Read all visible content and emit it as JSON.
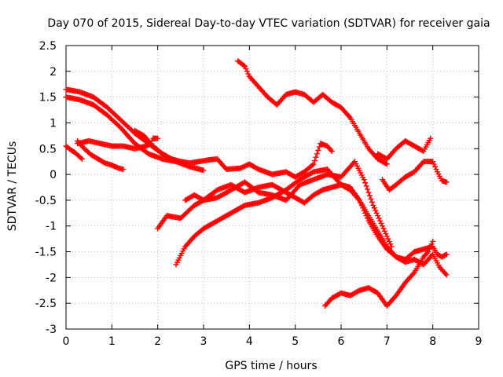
{
  "chart_data": {
    "type": "scatter",
    "title": "Day 070 of 2015, Sidereal Day-to-day VTEC variation (SDTVAR) for receiver gaia",
    "xlabel": "GPS time / hours",
    "ylabel": "SDTVAR / TECUs",
    "xlim": [
      0,
      9
    ],
    "ylim": [
      -3,
      2.5
    ],
    "xticks": [
      0,
      1,
      2,
      3,
      4,
      5,
      6,
      7,
      8,
      9
    ],
    "yticks": [
      -3,
      -2.5,
      -2,
      -1.5,
      -1,
      -0.5,
      0,
      0.5,
      1,
      1.5,
      2,
      2.5
    ],
    "grid": true,
    "marker": "+",
    "color": "#ff0000",
    "series": [
      {
        "x": [
          0.0,
          0.3,
          0.6,
          0.9,
          1.2,
          1.5,
          1.8,
          2.1,
          2.4,
          2.7,
          3.0
        ],
        "y": [
          1.65,
          1.6,
          1.5,
          1.3,
          1.05,
          0.8,
          0.6,
          0.4,
          0.25,
          0.15,
          0.08
        ]
      },
      {
        "x": [
          0.0,
          0.3,
          0.6,
          0.9,
          1.2,
          1.5,
          1.8,
          2.1,
          2.4
        ],
        "y": [
          1.5,
          1.45,
          1.35,
          1.15,
          0.9,
          0.6,
          0.4,
          0.3,
          0.25
        ]
      },
      {
        "x": [
          0.0,
          0.1,
          0.2,
          0.35
        ],
        "y": [
          0.55,
          0.48,
          0.42,
          0.3
        ]
      },
      {
        "x": [
          0.25,
          0.4,
          0.55,
          0.7,
          0.85,
          1.0,
          1.15,
          1.25
        ],
        "y": [
          0.65,
          0.5,
          0.38,
          0.3,
          0.22,
          0.18,
          0.12,
          0.1
        ]
      },
      {
        "x": [
          0.25,
          0.5,
          0.75,
          1.0,
          1.25,
          1.5,
          1.75,
          1.85,
          1.9,
          2.0
        ],
        "y": [
          0.6,
          0.65,
          0.6,
          0.55,
          0.55,
          0.5,
          0.55,
          0.6,
          0.7,
          0.7
        ]
      },
      {
        "x": [
          1.5,
          1.7,
          1.9,
          2.1,
          2.3,
          2.5,
          2.7,
          2.9,
          3.1,
          3.3,
          3.5,
          3.8,
          4.0,
          4.2,
          4.5,
          4.8,
          5.0,
          5.2,
          5.4,
          5.55,
          5.7,
          5.8
        ],
        "y": [
          0.85,
          0.75,
          0.55,
          0.4,
          0.3,
          0.25,
          0.22,
          0.25,
          0.28,
          0.3,
          0.1,
          0.12,
          0.2,
          0.1,
          0.0,
          0.05,
          -0.05,
          0.05,
          0.2,
          0.6,
          0.55,
          0.45
        ]
      },
      {
        "x": [
          3.75,
          3.9,
          4.0,
          4.2,
          4.4,
          4.6,
          4.8,
          5.0,
          5.2,
          5.4,
          5.6,
          5.8,
          6.0,
          6.2,
          6.4,
          6.6,
          6.8,
          7.0
        ],
        "y": [
          2.2,
          2.1,
          1.9,
          1.7,
          1.5,
          1.35,
          1.55,
          1.6,
          1.55,
          1.4,
          1.55,
          1.4,
          1.3,
          1.1,
          0.8,
          0.5,
          0.3,
          0.2
        ]
      },
      {
        "x": [
          6.8,
          7.0,
          7.2,
          7.4,
          7.6,
          7.8,
          7.95
        ],
        "y": [
          0.4,
          0.3,
          0.5,
          0.65,
          0.55,
          0.45,
          0.7
        ]
      },
      {
        "x": [
          6.9,
          7.05,
          7.2,
          7.4,
          7.6,
          7.8,
          8.0,
          8.1,
          8.2,
          8.3
        ],
        "y": [
          -0.1,
          -0.3,
          -0.2,
          -0.05,
          0.05,
          0.25,
          0.25,
          0.05,
          -0.12,
          -0.15
        ]
      },
      {
        "x": [
          2.0,
          2.2,
          2.5,
          2.8,
          3.0,
          3.3,
          3.6,
          3.9,
          4.2,
          4.5,
          4.8,
          5.1,
          5.4,
          5.7,
          6.0,
          6.3,
          6.5,
          6.7,
          6.9,
          7.1
        ],
        "y": [
          -1.05,
          -0.8,
          -0.85,
          -0.6,
          -0.5,
          -0.45,
          -0.3,
          -0.15,
          -0.35,
          -0.4,
          -0.5,
          -0.2,
          -0.1,
          0.0,
          -0.05,
          0.25,
          -0.1,
          -0.6,
          -1.0,
          -1.4
        ]
      },
      {
        "x": [
          2.4,
          2.6,
          2.8,
          3.0,
          3.3,
          3.6,
          3.9,
          4.2,
          4.5,
          4.8,
          5.1,
          5.4,
          5.7,
          6.0,
          6.2,
          6.4,
          6.6,
          6.8,
          7.0,
          7.2,
          7.4,
          7.6,
          7.8,
          8.0,
          8.1,
          8.2,
          8.3
        ],
        "y": [
          -1.75,
          -1.4,
          -1.2,
          -1.05,
          -0.9,
          -0.75,
          -0.6,
          -0.55,
          -0.45,
          -0.3,
          -0.1,
          0.05,
          0.1,
          -0.2,
          -0.3,
          -0.5,
          -0.8,
          -1.1,
          -1.4,
          -1.6,
          -1.65,
          -1.5,
          -1.45,
          -1.4,
          -1.55,
          -1.6,
          -1.55
        ]
      },
      {
        "x": [
          2.6,
          2.8,
          3.0,
          3.3,
          3.6,
          3.9,
          4.2,
          4.5,
          4.8,
          5.0,
          5.2,
          5.4,
          5.6,
          5.8,
          6.0,
          6.2,
          6.4,
          6.6,
          6.8,
          7.0,
          7.2,
          7.4,
          7.6,
          7.8,
          8.0,
          8.15,
          8.3
        ],
        "y": [
          -0.5,
          -0.4,
          -0.5,
          -0.3,
          -0.2,
          -0.35,
          -0.25,
          -0.2,
          -0.35,
          -0.45,
          -0.55,
          -0.4,
          -0.3,
          -0.25,
          -0.2,
          -0.25,
          -0.5,
          -0.9,
          -1.2,
          -1.45,
          -1.6,
          -1.7,
          -1.65,
          -1.75,
          -1.55,
          -1.8,
          -1.95
        ]
      },
      {
        "x": [
          5.65,
          5.8,
          6.0,
          6.2,
          6.4,
          6.6,
          6.8,
          7.0,
          7.2,
          7.4,
          7.6,
          7.8,
          7.9,
          8.0
        ],
        "y": [
          -2.55,
          -2.4,
          -2.3,
          -2.35,
          -2.25,
          -2.2,
          -2.3,
          -2.55,
          -2.35,
          -2.1,
          -1.9,
          -1.6,
          -1.5,
          -1.3
        ]
      }
    ]
  }
}
